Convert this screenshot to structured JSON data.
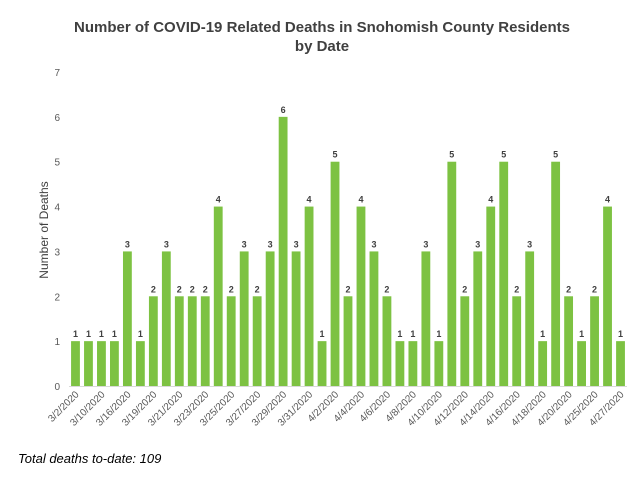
{
  "chart_data": {
    "type": "bar",
    "title_line1": "Number of COVID-19 Related Deaths in Snohomish County Residents",
    "title_line2": "by Date",
    "xlabel": "",
    "ylabel": "Number of Deaths",
    "ylim": [
      0,
      7
    ],
    "yticks": [
      0,
      1,
      2,
      3,
      4,
      5,
      6,
      7
    ],
    "grid": false,
    "bar_color": "#7dc242",
    "values": [
      1,
      1,
      1,
      1,
      3,
      1,
      2,
      3,
      2,
      2,
      2,
      4,
      2,
      3,
      2,
      3,
      6,
      3,
      4,
      1,
      5,
      2,
      4,
      3,
      2,
      1,
      1,
      3,
      1,
      5,
      2,
      3,
      4,
      5,
      2,
      3,
      1,
      5,
      2,
      1,
      2,
      4,
      1
    ],
    "tick_labels": [
      "3/2/2020",
      "3/10/2020",
      "3/16/2020",
      "3/19/2020",
      "3/21/2020",
      "3/23/2020",
      "3/25/2020",
      "3/27/2020",
      "3/29/2020",
      "3/31/2020",
      "4/2/2020",
      "4/4/2020",
      "4/6/2020",
      "4/8/2020",
      "4/10/2020",
      "4/12/2020",
      "4/14/2020",
      "4/16/2020",
      "4/18/2020",
      "4/20/2020",
      "4/25/2020",
      "4/27/2020"
    ]
  },
  "footnote": "Total deaths to-date: 109"
}
